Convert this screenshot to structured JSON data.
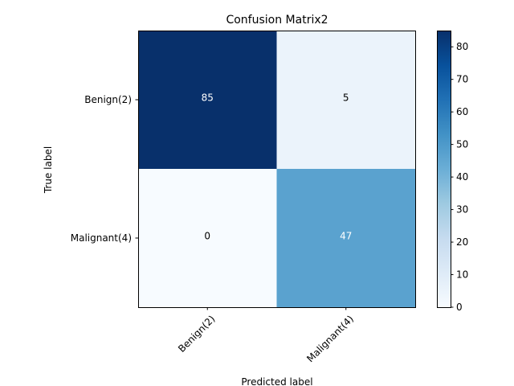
{
  "chart_data": {
    "type": "heatmap",
    "title": "Confusion Matrix2",
    "xlabel": "Predicted label",
    "ylabel": "True label",
    "x_categories": [
      "Benign(2)",
      "Malignant(4)"
    ],
    "y_categories": [
      "Benign(2)",
      "Malignant(4)"
    ],
    "values": [
      [
        85,
        5
      ],
      [
        0,
        47
      ]
    ],
    "colorbar": {
      "colormap": "Blues",
      "range": [
        0,
        85
      ],
      "ticks": [
        0,
        10,
        20,
        30,
        40,
        50,
        60,
        70,
        80
      ],
      "tick_labels": [
        "0",
        "10",
        "20",
        "30",
        "40",
        "50",
        "60",
        "70",
        "80"
      ]
    },
    "colors": {
      "low": "#f7fbff",
      "high": "#08306b",
      "text_dark_cell": "#ffffff",
      "text_light_cell": "#000000"
    }
  }
}
